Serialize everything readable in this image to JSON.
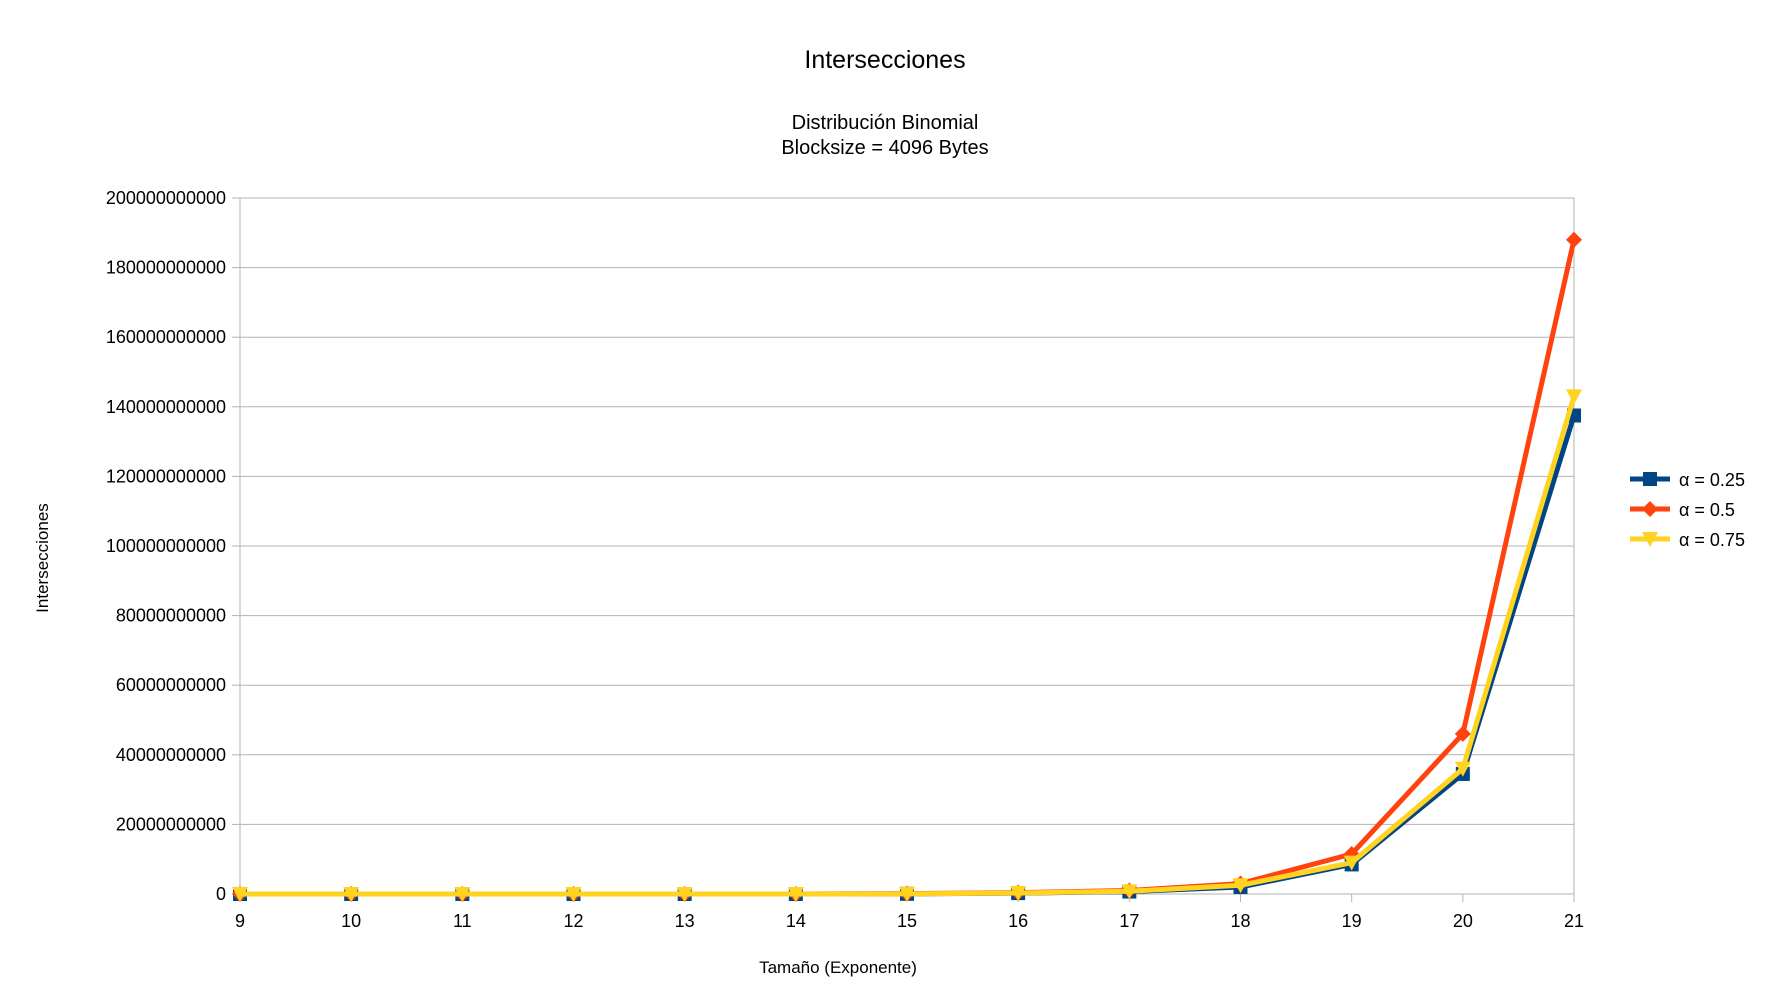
{
  "chart_data": {
    "type": "line",
    "title": "Intersecciones",
    "subtitle_lines": [
      "Distribución Binomial",
      "Blocksize = 4096 Bytes"
    ],
    "xlabel": "Tamaño (Exponente)",
    "ylabel": "Intersecciones",
    "x": [
      9,
      10,
      11,
      12,
      13,
      14,
      15,
      16,
      17,
      18,
      19,
      20,
      21
    ],
    "ylim": [
      0,
      200000000000
    ],
    "yticks": [
      0,
      20000000000,
      40000000000,
      60000000000,
      80000000000,
      100000000000,
      120000000000,
      140000000000,
      160000000000,
      180000000000,
      200000000000
    ],
    "ytick_labels": [
      "0",
      "20000000000",
      "40000000000",
      "60000000000",
      "80000000000",
      "100000000000",
      "120000000000",
      "140000000000",
      "160000000000",
      "180000000000",
      "200000000000"
    ],
    "grid": true,
    "legend_position": "right",
    "series": [
      {
        "name": "α = 0.25",
        "color": "#004586",
        "marker": "square",
        "values": [
          0,
          0,
          0,
          0,
          0,
          0,
          50000000,
          250000000,
          700000000,
          2000000000,
          8500000000,
          34500000000,
          137500000000
        ]
      },
      {
        "name": "α = 0.5",
        "color": "#ff420e",
        "marker": "diamond",
        "values": [
          0,
          0,
          0,
          0,
          0,
          0,
          100000000,
          400000000,
          1000000000,
          3000000000,
          11500000000,
          46000000000,
          188000000000
        ]
      },
      {
        "name": "α = 0.75",
        "color": "#ffd320",
        "marker": "triangle-down",
        "values": [
          0,
          0,
          0,
          0,
          0,
          0,
          50000000,
          300000000,
          800000000,
          2500000000,
          9000000000,
          36000000000,
          143000000000
        ]
      }
    ]
  }
}
